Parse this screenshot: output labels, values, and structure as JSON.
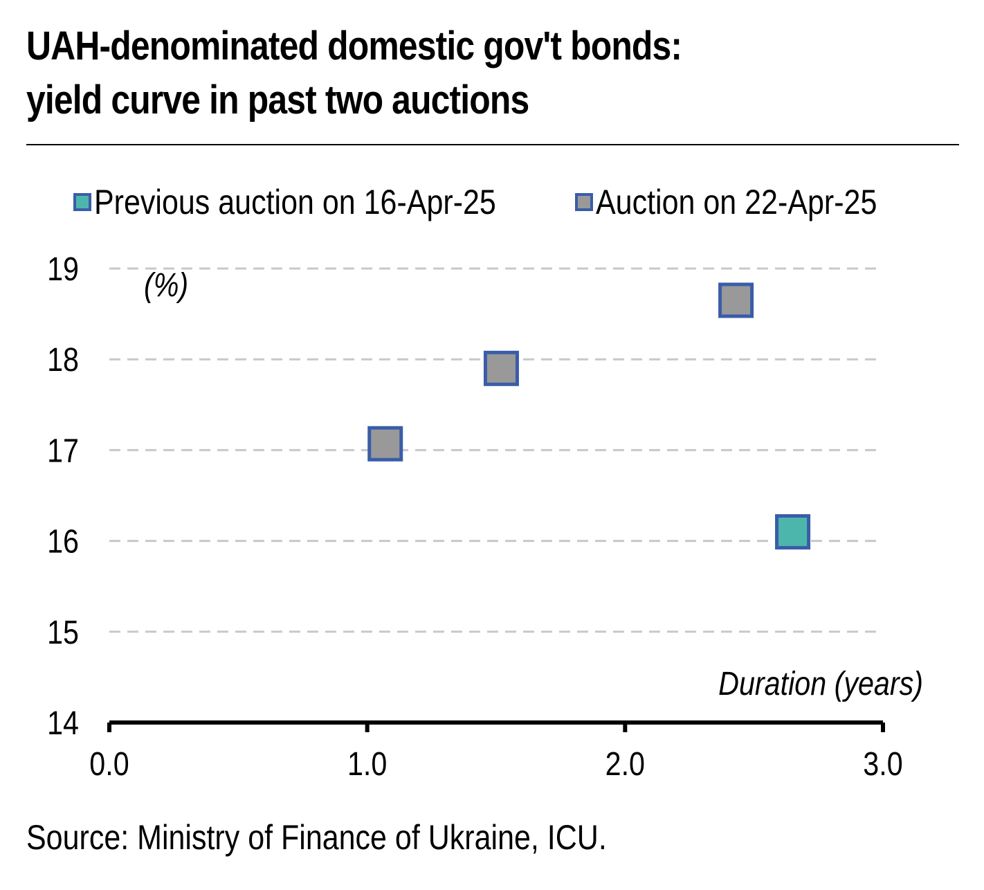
{
  "title_line1": "UAH-denominated domestic gov't bonds:",
  "title_line2": "yield curve in past two auctions",
  "source": "Source: Ministry of Finance of Ukraine, ICU.",
  "colors": {
    "previous_fill": "#4db6ac",
    "current_fill": "#999999",
    "marker_border": "#3a5da8",
    "gridline": "#c8c8c8",
    "axis": "#000000"
  },
  "chart_data": {
    "type": "scatter",
    "title": "UAH-denominated domestic gov't bonds: yield curve in past two auctions",
    "xlabel": "Duration (years)",
    "ylabel": "(%)",
    "xlim": [
      0.0,
      3.0
    ],
    "ylim": [
      14,
      19
    ],
    "x_ticks": [
      "0.0",
      "1.0",
      "2.0",
      "3.0"
    ],
    "y_ticks": [
      "14",
      "15",
      "16",
      "17",
      "18",
      "19"
    ],
    "grid": "horizontal dashed",
    "legend_position": "top",
    "series": [
      {
        "name": "Previous auction on 16-Apr-25",
        "color": "#4db6ac",
        "points": [
          {
            "x": 2.65,
            "y": 16.1
          }
        ]
      },
      {
        "name": "Auction on 22-Apr-25",
        "color": "#999999",
        "points": [
          {
            "x": 1.07,
            "y": 17.07
          },
          {
            "x": 1.52,
            "y": 17.9
          },
          {
            "x": 2.43,
            "y": 18.65
          }
        ]
      }
    ]
  }
}
